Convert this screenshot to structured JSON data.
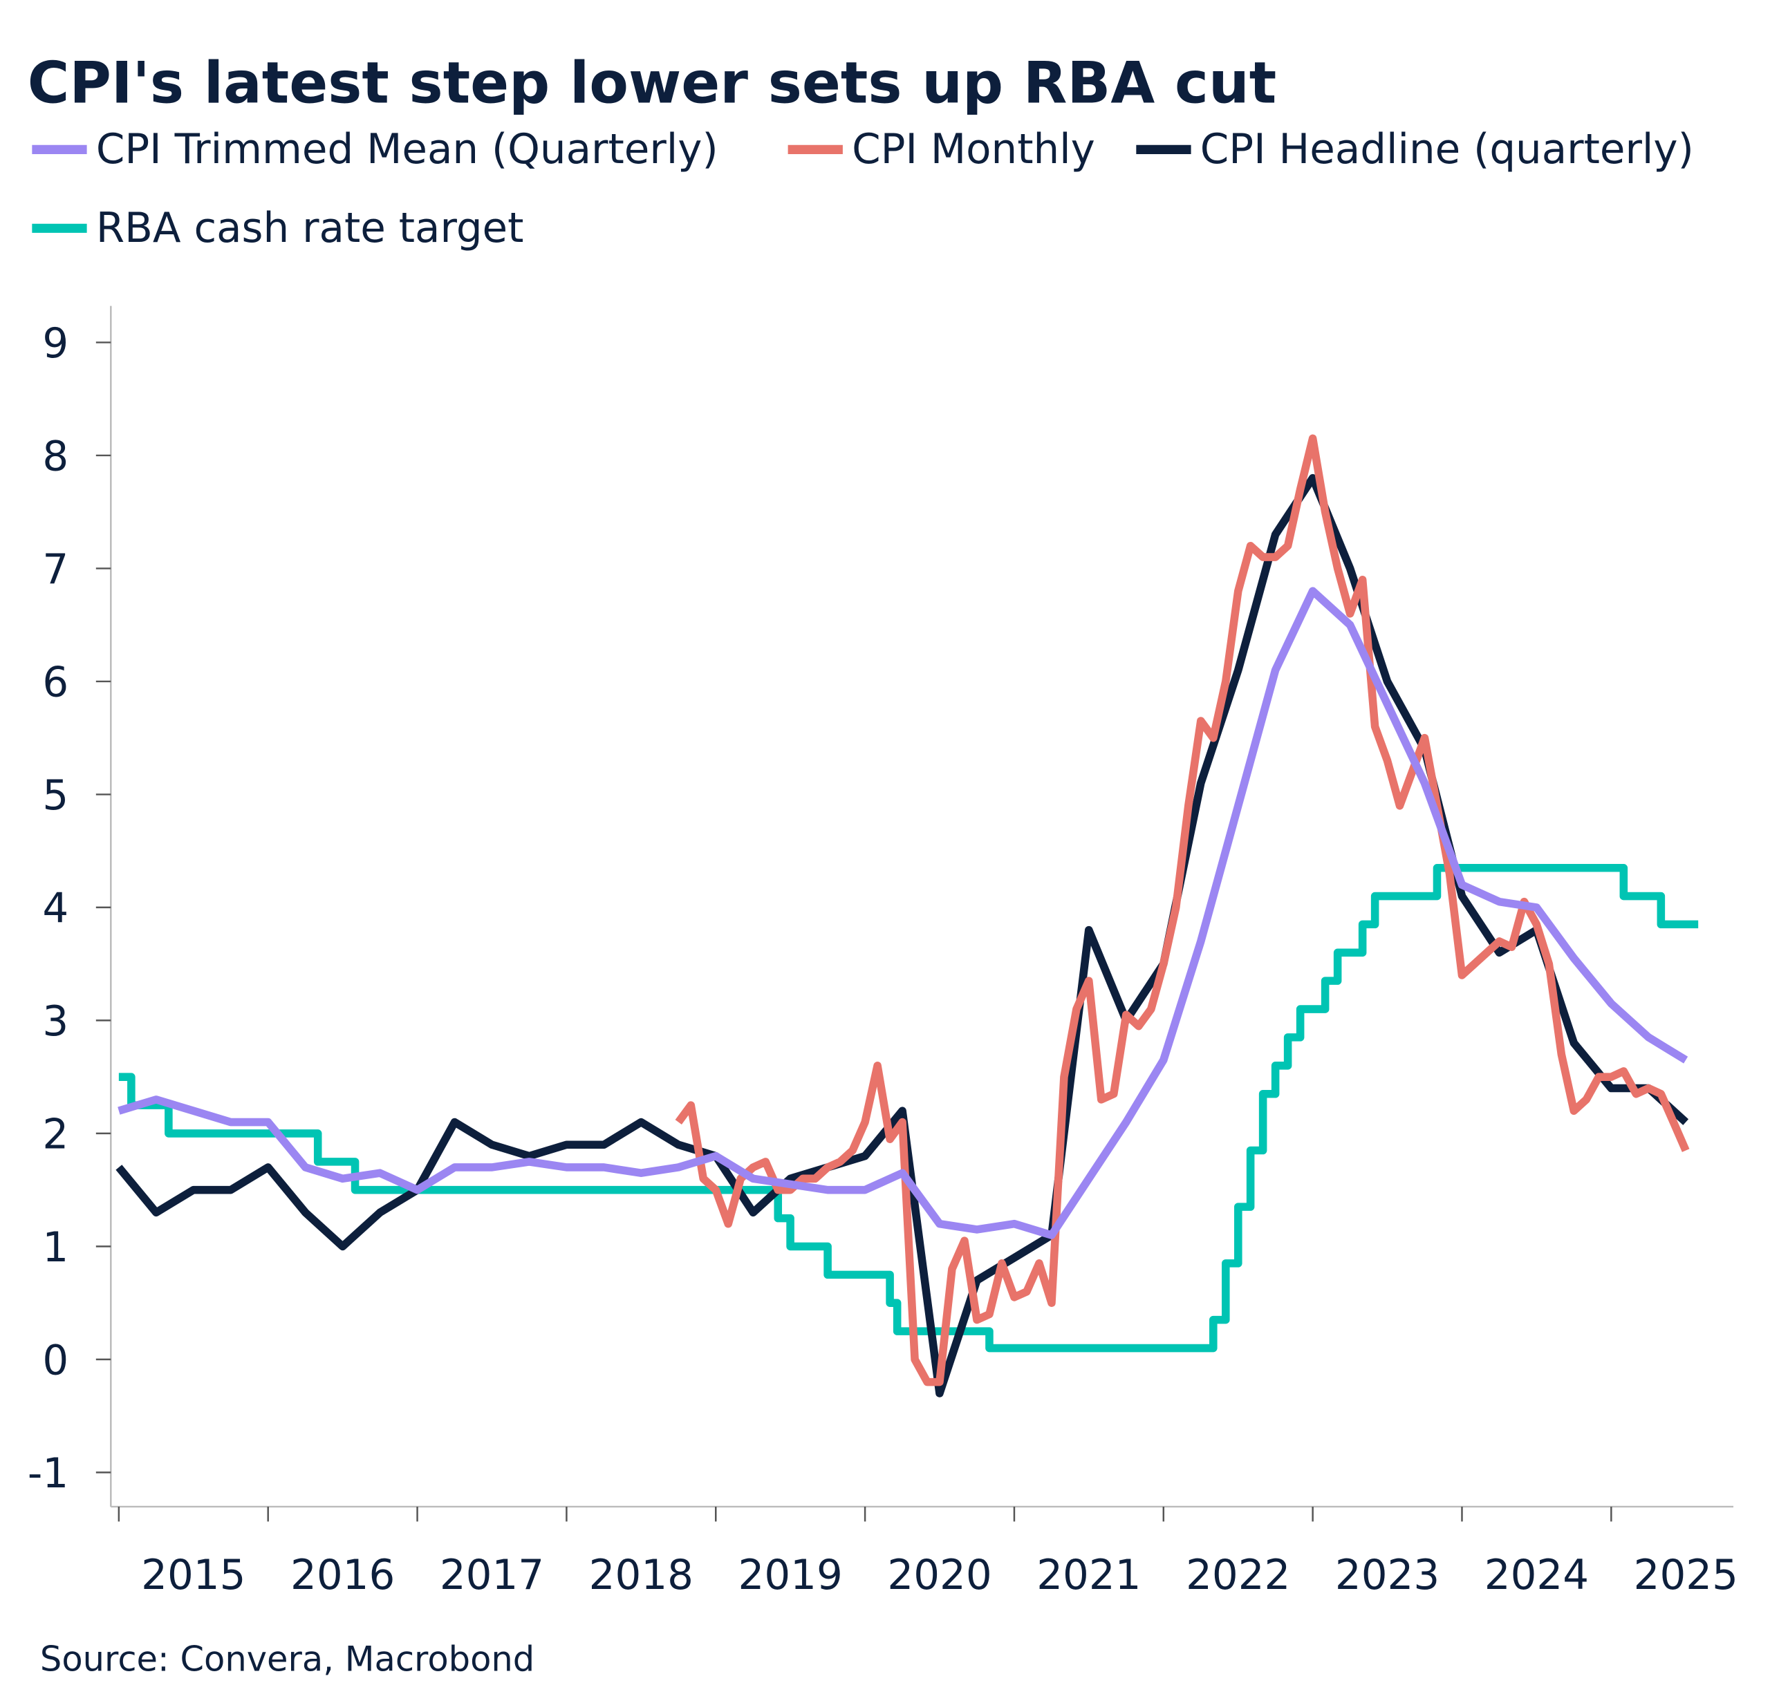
{
  "chart_data": {
    "type": "line",
    "title": "CPI's latest step lower sets up RBA cut",
    "source": "Source: Convera, Macrobond",
    "xlabel": "",
    "ylabel": "",
    "ylim": [
      -1,
      9
    ],
    "yticks": [
      "9",
      "8",
      "7",
      "6",
      "5",
      "4",
      "3",
      "2",
      "1",
      "0",
      "-1"
    ],
    "xticks": [
      "2015",
      "2016",
      "2017",
      "2018",
      "2019",
      "2020",
      "2021",
      "2022",
      "2023",
      "2024",
      "2025"
    ],
    "grid": false,
    "legend_position": "top-left",
    "series": [
      {
        "name": "CPI Trimmed Mean (Quarterly)",
        "color": "#9b86f2",
        "frequency": "quarterly",
        "x": [
          "2014-Q4",
          "2015-Q1",
          "2015-Q2",
          "2015-Q3",
          "2015-Q4",
          "2016-Q1",
          "2016-Q2",
          "2016-Q3",
          "2016-Q4",
          "2017-Q1",
          "2017-Q2",
          "2017-Q3",
          "2017-Q4",
          "2018-Q1",
          "2018-Q2",
          "2018-Q3",
          "2018-Q4",
          "2019-Q1",
          "2019-Q2",
          "2019-Q3",
          "2019-Q4",
          "2020-Q1",
          "2020-Q2",
          "2020-Q3",
          "2020-Q4",
          "2021-Q1",
          "2021-Q2",
          "2021-Q3",
          "2021-Q4",
          "2022-Q1",
          "2022-Q2",
          "2022-Q3",
          "2022-Q4",
          "2023-Q1",
          "2023-Q2",
          "2023-Q3",
          "2023-Q4",
          "2024-Q1",
          "2024-Q2",
          "2024-Q3",
          "2024-Q4",
          "2025-Q1",
          "2025-Q2"
        ],
        "values": [
          2.2,
          2.3,
          2.2,
          2.1,
          2.1,
          1.7,
          1.6,
          1.65,
          1.5,
          1.7,
          1.7,
          1.75,
          1.7,
          1.7,
          1.65,
          1.7,
          1.8,
          1.6,
          1.55,
          1.5,
          1.5,
          1.65,
          1.2,
          1.15,
          1.2,
          1.1,
          1.6,
          2.1,
          2.65,
          3.7,
          4.9,
          6.1,
          6.8,
          6.5,
          5.8,
          5.1,
          4.2,
          4.05,
          4.0,
          3.55,
          3.15,
          2.85,
          2.65
        ]
      },
      {
        "name": "CPI Monthly",
        "color": "#e8736a",
        "frequency": "monthly",
        "x_start": "2018-09",
        "values": [
          2.1,
          2.25,
          1.6,
          1.5,
          1.2,
          1.6,
          1.7,
          1.75,
          1.5,
          1.5,
          1.6,
          1.6,
          1.7,
          1.75,
          1.85,
          2.1,
          2.6,
          1.95,
          2.1,
          0.0,
          -0.2,
          -0.2,
          0.8,
          1.05,
          0.35,
          0.4,
          0.85,
          0.55,
          0.6,
          0.85,
          0.5,
          2.5,
          3.1,
          3.35,
          2.3,
          2.35,
          3.05,
          2.95,
          3.1,
          3.5,
          4.0,
          4.9,
          5.65,
          5.5,
          6.0,
          6.8,
          7.2,
          7.1,
          7.1,
          7.2,
          7.7,
          8.15,
          7.5,
          7.0,
          6.6,
          6.9,
          5.6,
          5.3,
          4.9,
          5.2,
          5.5,
          4.9,
          4.3,
          3.4,
          3.5,
          3.6,
          3.7,
          3.65,
          4.05,
          3.85,
          3.5,
          2.7,
          2.2,
          2.3,
          2.5,
          2.5,
          2.55,
          2.35,
          2.4,
          2.35,
          2.1,
          1.85
        ]
      },
      {
        "name": "CPI Headline (quarterly)",
        "color": "#0d1f3c",
        "frequency": "quarterly",
        "x": [
          "2014-Q4",
          "2015-Q1",
          "2015-Q2",
          "2015-Q3",
          "2015-Q4",
          "2016-Q1",
          "2016-Q2",
          "2016-Q3",
          "2016-Q4",
          "2017-Q1",
          "2017-Q2",
          "2017-Q3",
          "2017-Q4",
          "2018-Q1",
          "2018-Q2",
          "2018-Q3",
          "2018-Q4",
          "2019-Q1",
          "2019-Q2",
          "2019-Q3",
          "2019-Q4",
          "2020-Q1",
          "2020-Q2",
          "2020-Q3",
          "2020-Q4",
          "2021-Q1",
          "2021-Q2",
          "2021-Q3",
          "2021-Q4",
          "2022-Q1",
          "2022-Q2",
          "2022-Q3",
          "2022-Q4",
          "2023-Q1",
          "2023-Q2",
          "2023-Q3",
          "2023-Q4",
          "2024-Q1",
          "2024-Q2",
          "2024-Q3",
          "2024-Q4",
          "2025-Q1",
          "2025-Q2"
        ],
        "values": [
          1.7,
          1.3,
          1.5,
          1.5,
          1.7,
          1.3,
          1.0,
          1.3,
          1.5,
          2.1,
          1.9,
          1.8,
          1.9,
          1.9,
          2.1,
          1.9,
          1.8,
          1.3,
          1.6,
          1.7,
          1.8,
          2.2,
          -0.3,
          0.7,
          0.9,
          1.1,
          3.8,
          3.0,
          3.5,
          5.1,
          6.1,
          7.3,
          7.8,
          7.0,
          6.0,
          5.4,
          4.1,
          3.6,
          3.8,
          2.8,
          2.4,
          2.4,
          2.1
        ]
      },
      {
        "name": "RBA cash rate target",
        "color": "#00c4b3",
        "frequency": "step",
        "x": [
          "2015-01",
          "2015-02",
          "2015-05",
          "2016-05",
          "2016-08",
          "2019-06",
          "2019-07",
          "2019-10",
          "2020-03",
          "2020-03-19",
          "2020-11",
          "2022-05",
          "2022-06",
          "2022-07",
          "2022-08",
          "2022-09",
          "2022-10",
          "2022-11",
          "2022-12",
          "2023-02",
          "2023-03",
          "2023-05",
          "2023-06",
          "2023-11",
          "2025-02",
          "2025-05",
          "2025-08"
        ],
        "values": [
          2.5,
          2.25,
          2.0,
          1.75,
          1.5,
          1.25,
          1.0,
          0.75,
          0.5,
          0.25,
          0.1,
          0.35,
          0.85,
          1.35,
          1.85,
          2.35,
          2.6,
          2.85,
          3.1,
          3.35,
          3.6,
          3.85,
          4.1,
          4.35,
          4.1,
          3.85,
          3.85
        ]
      }
    ]
  }
}
